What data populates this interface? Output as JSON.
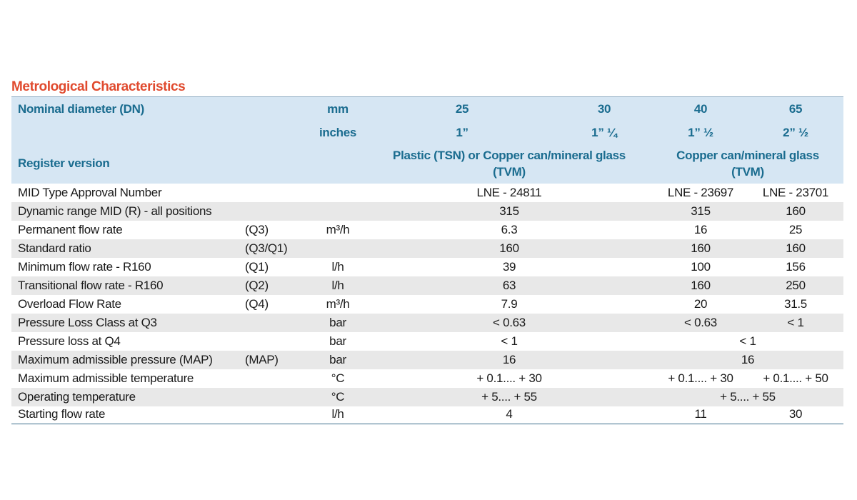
{
  "title": "Metrological Characteristics",
  "colors": {
    "title": "#e04a2e",
    "header_text": "#1a6c8f",
    "header_bg": "#d6e6f3",
    "stripe": "#e8e8e8"
  },
  "header": {
    "nominal_label": "Nominal diameter (DN)",
    "unit_mm": "mm",
    "unit_inches": "inches",
    "dn_mm": [
      "25",
      "30",
      "40",
      "65"
    ],
    "dn_inches": [
      "1”",
      "1” ¼",
      "1” ½",
      "2” ½"
    ],
    "register_label": "Register version",
    "register_plastic_line1": "Plastic (TSN) or Copper can/mineral glass",
    "register_plastic_line2": "(TVM)",
    "register_copper_line1": "Copper can/mineral glass",
    "register_copper_line2": "(TVM)"
  },
  "rows": [
    {
      "label": "MID Type Approval Number",
      "symbol": "",
      "unit": "",
      "dn25_30": "LNE - 24811",
      "dn40": "LNE - 23697",
      "dn65": "LNE - 23701"
    },
    {
      "label": "Dynamic range MID (R) - all positions",
      "symbol": "",
      "unit": "",
      "dn25_30": "315",
      "dn40": "315",
      "dn65": "160"
    },
    {
      "label": "Permanent flow rate",
      "symbol": "(Q3)",
      "unit": "m³/h",
      "dn25_30": "6.3",
      "dn40": "16",
      "dn65": "25"
    },
    {
      "label": "Standard ratio",
      "symbol": "(Q3/Q1)",
      "unit": "",
      "dn25_30": "160",
      "dn40": "160",
      "dn65": "160"
    },
    {
      "label": "Minimum flow rate - R160",
      "symbol": "(Q1)",
      "unit": "l/h",
      "dn25_30": "39",
      "dn40": "100",
      "dn65": "156"
    },
    {
      "label": "Transitional flow rate - R160",
      "symbol": "(Q2)",
      "unit": "l/h",
      "dn25_30": "63",
      "dn40": "160",
      "dn65": "250"
    },
    {
      "label": "Overload Flow Rate",
      "symbol": "(Q4)",
      "unit": "m³/h",
      "dn25_30": "7.9",
      "dn40": "20",
      "dn65": "31.5"
    },
    {
      "label": "Pressure Loss Class at Q3",
      "symbol": "",
      "unit": "bar",
      "dn25_30": "< 0.63",
      "dn40": "< 0.63",
      "dn65": "< 1"
    },
    {
      "label": "Pressure loss at Q4",
      "symbol": "",
      "unit": "bar",
      "dn25_30": "< 1",
      "dn40_65": "< 1"
    },
    {
      "label": "Maximum admissible pressure (MAP)",
      "symbol": "(MAP)",
      "unit": "bar",
      "dn25_30": "16",
      "dn40_65": "16"
    },
    {
      "label": "Maximum admissible temperature",
      "symbol": "",
      "unit": "°C",
      "dn25_30": "+ 0.1.... + 30",
      "dn40": "+ 0.1.... + 30",
      "dn65": "+ 0.1.... + 50"
    },
    {
      "label": "Operating temperature",
      "symbol": "",
      "unit": "°C",
      "dn25_30": "+ 5.... + 55",
      "dn40_65": "+ 5.... + 55"
    },
    {
      "label": "Starting flow rate",
      "symbol": "",
      "unit": "l/h",
      "dn25_30": "4",
      "dn40": "11",
      "dn65": "30"
    }
  ]
}
